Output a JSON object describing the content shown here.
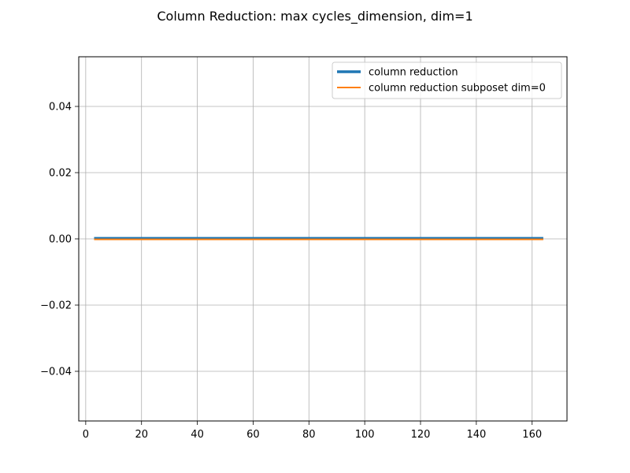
{
  "chart_data": {
    "type": "line",
    "title": "Column Reduction: max cycles_dimension, dim=1",
    "xlabel": "",
    "ylabel": "",
    "xlim": [
      -2.5,
      172.5
    ],
    "ylim": [
      -0.055,
      0.055
    ],
    "xticks": [
      0,
      20,
      40,
      60,
      80,
      100,
      120,
      140,
      160
    ],
    "yticks": [
      -0.04,
      -0.02,
      0.0,
      0.02,
      0.04
    ],
    "xtick_labels": [
      "0",
      "20",
      "40",
      "60",
      "80",
      "100",
      "120",
      "140",
      "160"
    ],
    "ytick_labels": [
      "−0.04",
      "−0.02",
      "0.00",
      "0.02",
      "0.04"
    ],
    "grid": true,
    "legend_position": "top-right",
    "series": [
      {
        "name": "column reduction",
        "color": "#1f77b4",
        "x": [
          3,
          164
        ],
        "y": [
          0,
          0
        ]
      },
      {
        "name": "column reduction subposet dim=0",
        "color": "#ff7f0e",
        "x": [
          3,
          164
        ],
        "y": [
          0,
          0
        ]
      }
    ]
  }
}
